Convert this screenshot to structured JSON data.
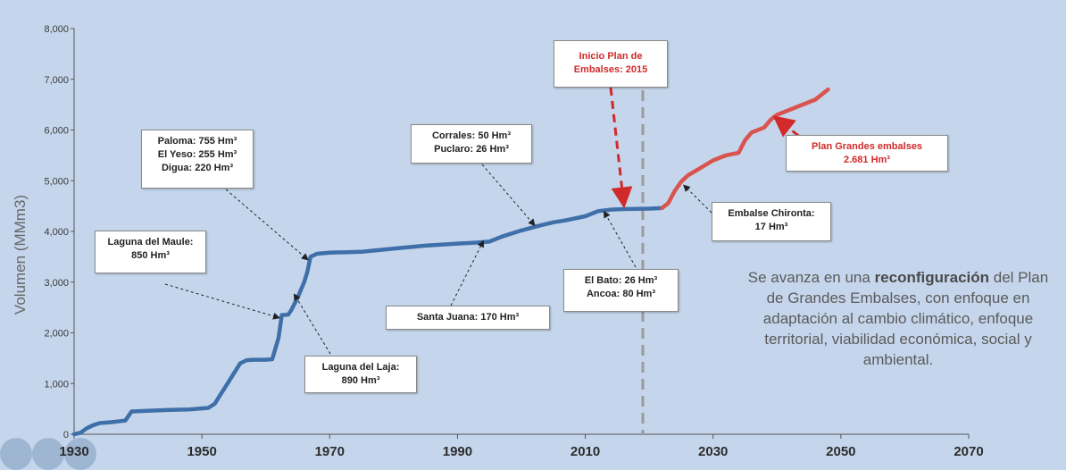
{
  "chart_data": {
    "type": "line",
    "title": "",
    "xlabel": "",
    "ylabel": "Volumen  (MMm3)",
    "xlim": [
      1930,
      2070
    ],
    "ylim": [
      0,
      8000
    ],
    "x_ticks": [
      "1930",
      "1950",
      "1970",
      "1990",
      "2010",
      "2030",
      "2050",
      "2070"
    ],
    "y_ticks": [
      "0",
      "1,000",
      "2,000",
      "3,000",
      "4,000",
      "5,000",
      "6,000",
      "7,000",
      "8,000"
    ],
    "grid": false,
    "series": [
      {
        "color": "#3f6fa8",
        "points": [
          [
            1930,
            0
          ],
          [
            1931,
            30
          ],
          [
            1932,
            120
          ],
          [
            1933,
            180
          ],
          [
            1934,
            220
          ],
          [
            1936,
            240
          ],
          [
            1938,
            270
          ],
          [
            1939,
            450
          ],
          [
            1941,
            460
          ],
          [
            1945,
            480
          ],
          [
            1948,
            490
          ],
          [
            1951,
            520
          ],
          [
            1952,
            600
          ],
          [
            1953,
            800
          ],
          [
            1954,
            1000
          ],
          [
            1955,
            1200
          ],
          [
            1956,
            1400
          ],
          [
            1957,
            1460
          ],
          [
            1958,
            1470
          ],
          [
            1960,
            1470
          ],
          [
            1961,
            1480
          ],
          [
            1962,
            1900
          ],
          [
            1962.5,
            2350
          ],
          [
            1963.5,
            2360
          ],
          [
            1964,
            2450
          ],
          [
            1965,
            2700
          ],
          [
            1966,
            3000
          ],
          [
            1966.5,
            3200
          ],
          [
            1967,
            3500
          ],
          [
            1968,
            3560
          ],
          [
            1970,
            3580
          ],
          [
            1975,
            3600
          ],
          [
            1980,
            3660
          ],
          [
            1985,
            3720
          ],
          [
            1990,
            3760
          ],
          [
            1993,
            3780
          ],
          [
            1995,
            3800
          ],
          [
            1997,
            3900
          ],
          [
            2000,
            4020
          ],
          [
            2003,
            4120
          ],
          [
            2005,
            4180
          ],
          [
            2007,
            4220
          ],
          [
            2010,
            4300
          ],
          [
            2012,
            4400
          ],
          [
            2014,
            4430
          ],
          [
            2016,
            4440
          ],
          [
            2020,
            4450
          ],
          [
            2022,
            4460
          ]
        ]
      },
      {
        "color": "#d9534f",
        "points": [
          [
            2022,
            4460
          ],
          [
            2023,
            4560
          ],
          [
            2024,
            4800
          ],
          [
            2025,
            4980
          ],
          [
            2026,
            5100
          ],
          [
            2028,
            5250
          ],
          [
            2030,
            5400
          ],
          [
            2032,
            5500
          ],
          [
            2034,
            5550
          ],
          [
            2035,
            5800
          ],
          [
            2036,
            5950
          ],
          [
            2038,
            6050
          ],
          [
            2039,
            6200
          ],
          [
            2040,
            6300
          ],
          [
            2042,
            6400
          ],
          [
            2044,
            6500
          ],
          [
            2046,
            6600
          ],
          [
            2048,
            6800
          ]
        ]
      }
    ],
    "vline": {
      "x": 2019,
      "color": "#9a9a9a"
    },
    "annotations": [
      {
        "lines": [
          "Laguna del Maule:",
          "850 Hm³"
        ],
        "target": [
          1962,
          2300
        ]
      },
      {
        "lines": [
          "Paloma: 755 Hm³",
          "El Yeso: 255 Hm³",
          "Digua: 220 Hm³"
        ],
        "target": [
          1966.5,
          3450
        ]
      },
      {
        "lines": [
          "Laguna del Laja:",
          "890 Hm³"
        ],
        "target": [
          1964.5,
          2750
        ]
      },
      {
        "lines": [
          "Santa Juana: 170 Hm³"
        ],
        "target": [
          1994,
          3800
        ]
      },
      {
        "lines": [
          "Corrales: 50 Hm³",
          "Puclaro: 26 Hm³"
        ],
        "target": [
          2002,
          4130
        ]
      },
      {
        "lines": [
          "El Bato: 26 Hm³",
          "Ancoa: 80 Hm³"
        ],
        "target": [
          2013,
          4380
        ]
      },
      {
        "lines": [
          "Inicio Plan de",
          "Embalses: 2015"
        ],
        "target": [
          2016,
          4450
        ],
        "color": "#d02a2a"
      },
      {
        "lines": [
          "Embalse Chironta:",
          "17 Hm³"
        ],
        "target": [
          2025.5,
          4900
        ]
      },
      {
        "lines": [
          "Plan Grandes embalses",
          "2.681 Hm³"
        ],
        "target": [
          2040,
          6220
        ],
        "color": "#d02a2a"
      }
    ]
  },
  "note": {
    "pre": "Se avanza en una ",
    "bold": "reconfiguración",
    "post": " del Plan de Grandes Embalses, con enfoque en adaptación al cambio climático, enfoque territorial, viabilidad económica, social y ambiental."
  }
}
